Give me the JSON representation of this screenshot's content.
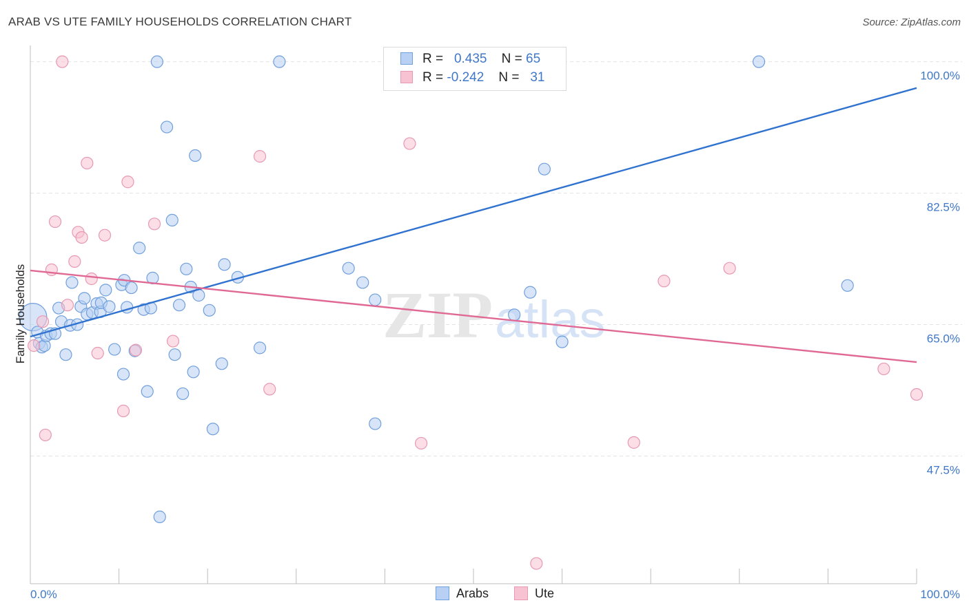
{
  "header": {
    "title": "ARAB VS UTE FAMILY HOUSEHOLDS CORRELATION CHART",
    "source": "Source: ZipAtlas.com"
  },
  "watermark": {
    "zip": "ZIP",
    "atlas": "atlas"
  },
  "legend": {
    "rows": [
      {
        "r_label": "R =",
        "r_value": "0.435",
        "n_label": "N =",
        "n_value": "65"
      },
      {
        "r_label": "R =",
        "r_value": "-0.242",
        "n_label": "N =",
        "n_value": "31"
      }
    ]
  },
  "bottom_legend": {
    "arabs": "Arabs",
    "ute": "Ute"
  },
  "colors": {
    "arabs_fill": "#b8d0f3",
    "arabs_stroke": "#6f9fdc",
    "arabs_line": "#2f72d0",
    "ute_fill": "#f7c3d2",
    "ute_stroke": "#e898b3",
    "ute_line": "#e06994",
    "tick_text": "#3f77c9",
    "grid": "#e3e3e3"
  },
  "chart_data": {
    "type": "scatter",
    "title": "ARAB VS UTE FAMILY HOUSEHOLDS CORRELATION CHART",
    "xlabel": "",
    "ylabel": "Family Households",
    "xlim": [
      0,
      100
    ],
    "ylim": [
      30.5,
      101.8
    ],
    "x_tick_labels": [
      "0.0%",
      "100.0%"
    ],
    "y_ticks": [
      47.5,
      65.0,
      82.5,
      100.0
    ],
    "y_tick_labels": [
      "47.5%",
      "65.0%",
      "82.5%",
      "100.0%"
    ],
    "grid": true,
    "legend_position": "top-center",
    "series": [
      {
        "name": "Arabs",
        "trend": {
          "x": [
            0,
            100
          ],
          "y": [
            63.4,
            96.5
          ]
        },
        "points": [
          [
            0.3,
            66.0
          ],
          [
            0.8,
            64.0
          ],
          [
            1.0,
            62.5
          ],
          [
            1.3,
            62.0
          ],
          [
            1.6,
            62.2
          ],
          [
            1.8,
            63.5
          ],
          [
            2.3,
            63.8
          ],
          [
            2.8,
            63.8
          ],
          [
            3.2,
            67.2
          ],
          [
            3.5,
            65.4
          ],
          [
            4.0,
            61.0
          ],
          [
            4.5,
            64.9
          ],
          [
            4.7,
            70.6
          ],
          [
            5.3,
            65.0
          ],
          [
            5.7,
            67.4
          ],
          [
            6.1,
            68.5
          ],
          [
            6.4,
            66.4
          ],
          [
            7.0,
            66.6
          ],
          [
            7.5,
            67.8
          ],
          [
            7.9,
            66.7
          ],
          [
            8.0,
            67.9
          ],
          [
            8.5,
            69.6
          ],
          [
            8.9,
            67.4
          ],
          [
            9.5,
            61.7
          ],
          [
            10.3,
            70.3
          ],
          [
            10.5,
            58.4
          ],
          [
            10.6,
            70.9
          ],
          [
            10.9,
            67.3
          ],
          [
            11.4,
            69.9
          ],
          [
            11.8,
            61.5
          ],
          [
            12.3,
            75.2
          ],
          [
            12.8,
            67.0
          ],
          [
            13.2,
            56.1
          ],
          [
            13.6,
            67.2
          ],
          [
            13.8,
            71.2
          ],
          [
            14.3,
            100.0
          ],
          [
            14.6,
            39.4
          ],
          [
            15.4,
            91.3
          ],
          [
            16.0,
            78.9
          ],
          [
            16.3,
            61.0
          ],
          [
            16.8,
            67.6
          ],
          [
            17.2,
            55.8
          ],
          [
            17.6,
            72.4
          ],
          [
            18.1,
            70.0
          ],
          [
            18.4,
            58.7
          ],
          [
            18.6,
            87.5
          ],
          [
            19.0,
            68.9
          ],
          [
            20.2,
            66.9
          ],
          [
            20.6,
            51.1
          ],
          [
            21.6,
            59.8
          ],
          [
            21.9,
            73.0
          ],
          [
            23.4,
            71.3
          ],
          [
            25.9,
            61.9
          ],
          [
            28.1,
            100.0
          ],
          [
            35.9,
            72.5
          ],
          [
            37.5,
            70.6
          ],
          [
            38.9,
            68.3
          ],
          [
            38.9,
            51.8
          ],
          [
            52.1,
            100.0
          ],
          [
            54.6,
            66.3
          ],
          [
            56.4,
            69.3
          ],
          [
            58.0,
            85.7
          ],
          [
            60.0,
            62.7
          ],
          [
            82.2,
            100.0
          ],
          [
            92.2,
            70.2
          ]
        ]
      },
      {
        "name": "Ute",
        "trend": {
          "x": [
            0,
            100
          ],
          "y": [
            72.2,
            60.0
          ]
        },
        "points": [
          [
            0.4,
            62.2
          ],
          [
            1.4,
            65.4
          ],
          [
            1.7,
            50.3
          ],
          [
            2.4,
            72.3
          ],
          [
            2.8,
            78.7
          ],
          [
            3.6,
            100.0
          ],
          [
            4.2,
            67.6
          ],
          [
            5.0,
            73.4
          ],
          [
            5.4,
            77.3
          ],
          [
            5.8,
            76.6
          ],
          [
            6.4,
            86.5
          ],
          [
            6.9,
            71.1
          ],
          [
            7.6,
            61.2
          ],
          [
            8.4,
            76.9
          ],
          [
            10.5,
            53.5
          ],
          [
            11.0,
            84.0
          ],
          [
            11.9,
            61.6
          ],
          [
            14.0,
            78.4
          ],
          [
            16.1,
            62.8
          ],
          [
            25.9,
            87.4
          ],
          [
            27.0,
            56.4
          ],
          [
            42.8,
            89.1
          ],
          [
            44.1,
            49.2
          ],
          [
            52.4,
            100.0
          ],
          [
            57.1,
            33.2
          ],
          [
            59.2,
            100.0
          ],
          [
            68.1,
            49.3
          ],
          [
            71.5,
            70.8
          ],
          [
            78.9,
            72.5
          ],
          [
            96.3,
            59.1
          ],
          [
            100.0,
            55.7
          ]
        ]
      }
    ]
  }
}
